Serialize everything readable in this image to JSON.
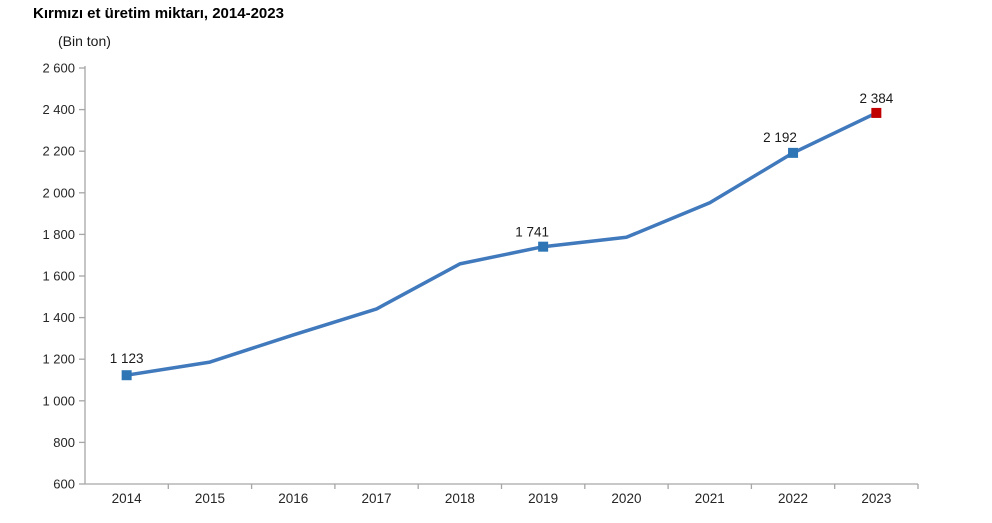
{
  "chart_data": {
    "type": "line",
    "title": "Kırmızı et üretim miktarı, 2014-2023",
    "unit": "(Bin ton)",
    "xlabel": "",
    "ylabel": "Bin ton",
    "categories": [
      "2014",
      "2015",
      "2016",
      "2017",
      "2018",
      "2019",
      "2020",
      "2021",
      "2022",
      "2023"
    ],
    "series": [
      {
        "name": "Kırmızı et üretim miktarı",
        "values": [
          1123,
          1186,
          1317,
          1442,
          1658,
          1741,
          1786,
          1952,
          2192,
          2384
        ]
      }
    ],
    "labeled_points": [
      {
        "category": "2014",
        "index": 0,
        "label": "1 123"
      },
      {
        "category": "2019",
        "index": 5,
        "label": "1 741"
      },
      {
        "category": "2022",
        "index": 8,
        "label": "2 192"
      },
      {
        "category": "2023",
        "index": 9,
        "label": "2 384"
      }
    ],
    "ylim": [
      600,
      2600
    ],
    "ytick_step": 200,
    "ytick_labels": [
      "600",
      "800",
      "1 000",
      "1 200",
      "1 400",
      "1 600",
      "1 800",
      "2 000",
      "2 200",
      "2 400",
      "2 600"
    ],
    "grid": false,
    "legend_position": "none",
    "colors": {
      "line": "#4179BD",
      "marker": "#2E75B6",
      "last_marker": "#C00000",
      "axis": "#A6A6A6",
      "tick_text": "#262626",
      "data_label_text": "#1a1a1a"
    }
  }
}
